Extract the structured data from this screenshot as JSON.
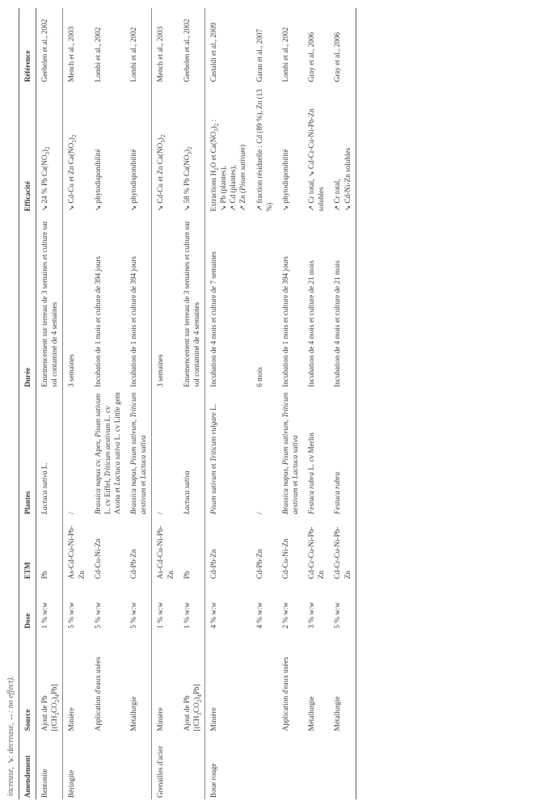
{
  "caption_tail": "increase, ↘: decrease, ↔: no effect).",
  "headers": {
    "amendement": "Amendement",
    "source": "Source",
    "dose": "Dose",
    "etm": "ETM",
    "plantes": "Plantes",
    "duree": "Durée",
    "efficacite": "Efficacité",
    "reference": "Référence"
  },
  "rows": [
    {
      "section_start": true,
      "amendement": "Bentonite",
      "source_html": "Ajout de Pb<br>[(CH<span class=\"sub\">3</span>CO<span class=\"sub\">2</span>)<span class=\"sub\">4</span>Pb]",
      "dose": "1 % w:w",
      "etm": "Pb",
      "plantes_html": "<span class=\"ital\">Lactuca sativa</span> L.",
      "duree": "Ensemencement sur terreau de 3 semaines et culture sur sol contaminé de 4 semaines",
      "efficacite_html": "↘ 24 % Pb Ca(NO<span class=\"sub\">3</span>)<span class=\"sub\">2</span>",
      "reference": "Geebelen et al., 2002"
    },
    {
      "section_start": true,
      "amendement": "Béringite",
      "source_html": "Minière",
      "dose": "5 % w:w",
      "etm": "As-Cd-Cu-Ni-Pb-Zn",
      "plantes_html": "/",
      "duree": "3 semaines",
      "efficacite_html": "↘ Cd-Cu et Zn Ca(NO<span class=\"sub\">3</span>)<span class=\"sub\">2</span>",
      "reference": "Mench et al., 2003"
    },
    {
      "amendement": "",
      "source_html": "Application d'eaux usées",
      "dose": "5 % w:w",
      "etm": "Cd-Cu-Ni-Zn",
      "plantes_html": "<span class=\"ital\">Brassica napus</span> cv. Apex, <span class=\"ital\">Pisum sativum</span> L. cv Eiffel, <span class=\"ital\">Triticum aestivum</span> L. cv Axona et <span class=\"ital\">Lactuca sativa</span> L. cv Little gem",
      "duree": "Incubation de 1 mois et culture de 394 jours",
      "efficacite_html": "↘ phytodisponibilité",
      "reference": "Lombi et al., 2002"
    },
    {
      "amendement": "",
      "source_html": "Métallurgie",
      "dose": "5 % w:w",
      "etm": "Cd-Pb-Zn",
      "plantes_html": "<span class=\"ital\">Brassica napus</span>, <span class=\"ital\">Pisum sativum</span>, <span class=\"ital\">Triticum aestivum</span> et <span class=\"ital\">Lactuca sativa</span>",
      "duree": "Incubation de 1 mois et culture de 394 jours",
      "efficacite_html": "↘ phytodisponibilité",
      "reference": "Lombi et al., 2002"
    },
    {
      "section_start": true,
      "amendement": "Grenailles d'acier",
      "source_html": "Minière",
      "dose": "1 % w:w",
      "etm": "As-Cd-Cu-Ni-Pb-Zn",
      "plantes_html": "/",
      "duree": "3 semaines",
      "efficacite_html": "↘ Cd-Cu et Zn Ca(NO<span class=\"sub\">3</span>)<span class=\"sub\">2</span>",
      "reference": "Mench et al., 2003"
    },
    {
      "amendement": "",
      "source_html": "Ajout de Pb<br>[(CH<span class=\"sub\">3</span>CO<span class=\"sub\">2</span>)<span class=\"sub\">4</span>Pb]",
      "dose": "1 % w:w",
      "etm": "Pb",
      "plantes_html": "<span class=\"ital\">Lactuca sativa</span>",
      "duree": "Ensemencement sur terreau de 3 semaines et culture sur sol contaminé de 4 semaines",
      "efficacite_html": "↘ 58 % Pb Ca(NO<span class=\"sub\">3</span>)<span class=\"sub\">2</span>",
      "reference": "Geebelen et al., 2002"
    },
    {
      "section_start": true,
      "amendement": "Boue rouge",
      "source_html": "Minière",
      "dose": "4 % w:w",
      "etm": "Cd-Pb-Zn",
      "plantes_html": "<span class=\"ital\">Pisum sativum</span> et <span class=\"ital\">Triticum vulgare</span> L.",
      "duree": "Incubation de 4 mois et culture de 7 semaines",
      "efficacite_html": "Extractions H<span class=\"sub\">2</span>O et Ca(NO<span class=\"sub\">3</span>)<span class=\"sub\">2</span> :<br>↘ Pb (plantes),<br>↗ Cd (plantes),<br>↗ Zn (<span class=\"ital\">Pisum sativum</span>)",
      "reference": "Castaldi et al., 2009"
    },
    {
      "amendement": "",
      "source_html": "",
      "dose": "4 % w:w",
      "etm": "Cd-Pb-Zn",
      "plantes_html": "/",
      "duree": "6 mois",
      "efficacite_html": "↗ fraction résiduelle : Cd (89 %), Zn (13 %)",
      "reference": "Garau et al., 2007"
    },
    {
      "amendement": "",
      "source_html": "Application d'eaux usées",
      "dose": "2 % w:w",
      "etm": "Cd-Cu-Ni-Zn",
      "plantes_html": "<span class=\"ital\">Brassica napus</span>, <span class=\"ital\">Pisum sativum</span>, <span class=\"ital\">Triticum aestivum</span> et <span class=\"ital\">Lactuca sativa</span>",
      "duree": "Incubation de 1 mois et culture de 394 jours",
      "efficacite_html": "↘ phytodisponibilité",
      "reference": "Lombi et al., 2002"
    },
    {
      "amendement": "",
      "source_html": "Métallurgie",
      "dose": "3 % w:w",
      "etm": "Cd-Cr-Cu-Ni-Pb-Zn",
      "plantes_html": "<span class=\"ital\">Festuca rubra</span> L. cv Merlin",
      "duree": "Incubation de 4 mois et culture de 21 mois",
      "efficacite_html": "↗ Cr total, ↘ Cd-Cr-Cu-Ni-Pb-Zn solubles",
      "reference": "Gray et al., 2006"
    },
    {
      "last_row": true,
      "amendement": "",
      "source_html": "Métallurgie",
      "dose": "5 % w:w",
      "etm": "Cd-Cr-Cu-Ni-Pb-Zn",
      "plantes_html": "<span class=\"ital\">Festuca rubra</span>",
      "duree": "Incubation de 4 mois et culture de 21 mois",
      "efficacite_html": "↗ Cr total,<br>↘ Cd-Ni-Zn solubles",
      "reference": "Gray et al., 2006"
    }
  ]
}
